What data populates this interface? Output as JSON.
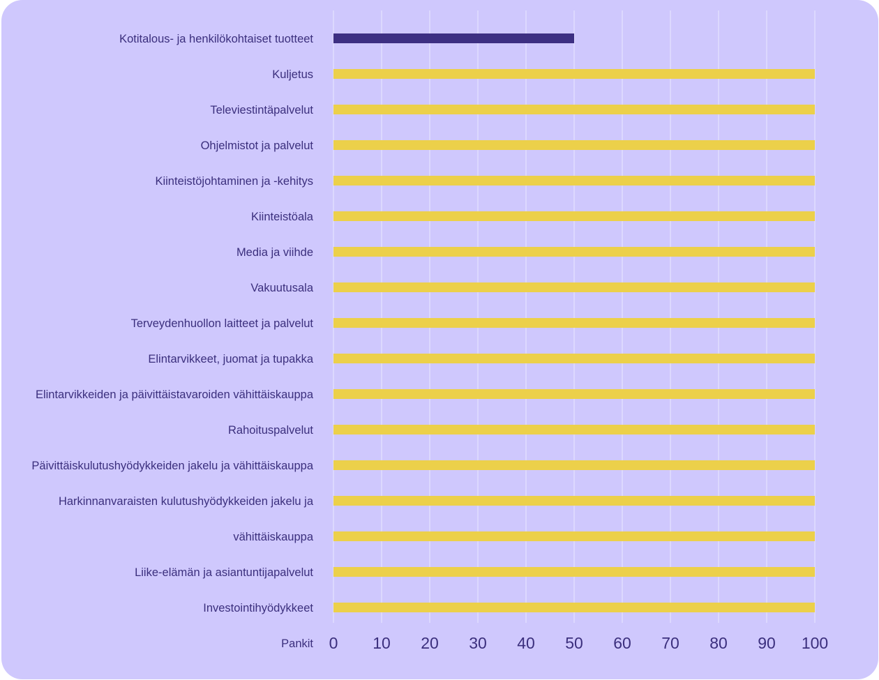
{
  "chart_data": {
    "type": "bar",
    "orientation": "horizontal",
    "categories": [
      "Kotitalous- ja henkilökohtaiset tuotteet",
      "Kuljetus",
      "Televiestintäpalvelut",
      "Ohjelmistot ja palvelut",
      "Kiinteistöjohtaminen ja -kehitys",
      "Kiinteistöala",
      "Media ja viihde",
      "Vakuutusala",
      "Terveydenhuollon laitteet ja palvelut",
      "Elintarvikkeet, juomat ja tupakka",
      "Elintarvikkeiden ja päivittäistavaroiden vähittäiskauppa",
      "Rahoituspalvelut",
      "Päivittäiskulutushyödykkeiden jakelu ja vähittäiskauppa",
      "Harkinnanvaraisten kulutushyödykkeiden jakelu ja",
      "vähittäiskauppa",
      "Liike-elämän ja asiantuntijapalvelut",
      "Investointihyödykkeet"
    ],
    "values": [
      50,
      100,
      100,
      100,
      100,
      100,
      100,
      100,
      100,
      100,
      100,
      100,
      100,
      100,
      100,
      100,
      100
    ],
    "highlight_index": 0,
    "xlabel": "Pankit",
    "xlim": [
      0,
      100
    ],
    "xticks": [
      0,
      10,
      20,
      30,
      40,
      50,
      60,
      70,
      80,
      90,
      100
    ],
    "grid": true,
    "colors": {
      "background": "#cfc8fd",
      "highlight_bar": "#3d2f82",
      "bar": "#ecd04a",
      "grid": "#e6e2fe",
      "text": "#3b2f7d"
    }
  }
}
